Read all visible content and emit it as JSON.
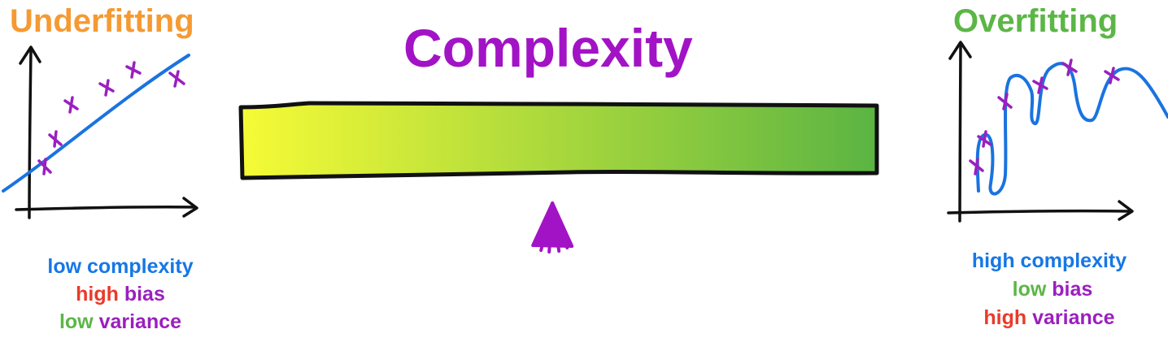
{
  "underfitting": {
    "title": "Underfitting",
    "title_color": "#f59a32",
    "caption": [
      {
        "parts": [
          {
            "text": "low complexity",
            "color": "#1677e6"
          }
        ]
      },
      {
        "parts": [
          {
            "text": "high",
            "color": "#ea3a2a"
          },
          {
            "text": " bias",
            "color": "#9b1fbf"
          }
        ]
      },
      {
        "parts": [
          {
            "text": "low",
            "color": "#5cb646"
          },
          {
            "text": " variance",
            "color": "#9b1fbf"
          }
        ]
      }
    ]
  },
  "complexity": {
    "title": "Complexity",
    "title_color": "#a213c6",
    "gradient_start": "#f6fb36",
    "gradient_end": "#5bb443",
    "pointer_color": "#a213c6",
    "pointer_level": 0.49
  },
  "overfitting": {
    "title": "Overfitting",
    "title_color": "#5cb646",
    "caption": [
      {
        "parts": [
          {
            "text": "high complexity",
            "color": "#1677e6"
          }
        ]
      },
      {
        "parts": [
          {
            "text": "low",
            "color": "#5cb646"
          },
          {
            "text": " bias",
            "color": "#9b1fbf"
          }
        ]
      },
      {
        "parts": [
          {
            "text": "high",
            "color": "#ea3a2a"
          },
          {
            "text": " variance",
            "color": "#9b1fbf"
          }
        ]
      }
    ]
  },
  "colors": {
    "curve": "#1a73e0",
    "points": "#9b1fbf",
    "axes": "#111111"
  }
}
